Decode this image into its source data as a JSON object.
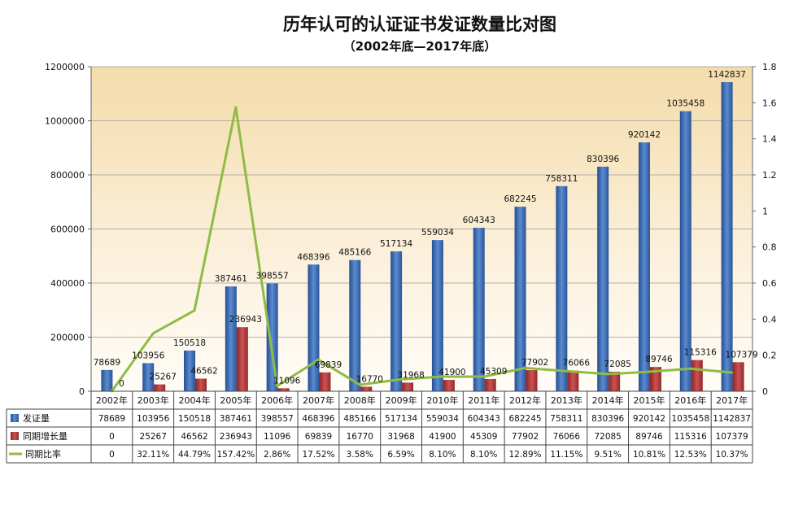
{
  "chart_data": {
    "type": "bar",
    "title": "历年认可的认证证书发证数量比对图",
    "subtitle": "（2002年底—2017年底）",
    "categories": [
      "2002年",
      "2003年",
      "2004年",
      "2005年",
      "2006年",
      "2007年",
      "2008年",
      "2009年",
      "2010年",
      "2011年",
      "2012年",
      "2013年",
      "2014年",
      "2015年",
      "2016年",
      "2017年"
    ],
    "series": [
      {
        "name": "发证量",
        "kind": "bar",
        "axis": "left",
        "color": "#3f6fb6",
        "values": [
          78689,
          103956,
          150518,
          387461,
          398557,
          468396,
          485166,
          517134,
          559034,
          604343,
          682245,
          758311,
          830396,
          920142,
          1035458,
          1142837
        ]
      },
      {
        "name": "同期增长量",
        "kind": "bar",
        "axis": "left",
        "color": "#b23a3a",
        "values": [
          0,
          25267,
          46562,
          236943,
          11096,
          69839,
          16770,
          31968,
          41900,
          45309,
          77902,
          76066,
          72085,
          89746,
          115316,
          107379
        ]
      },
      {
        "name": "同期比率",
        "kind": "line",
        "axis": "right",
        "color": "#8fbc45",
        "values": [
          0,
          0.3211,
          0.4479,
          1.5742,
          0.0286,
          0.1752,
          0.0358,
          0.0659,
          0.081,
          0.081,
          0.1289,
          0.1115,
          0.0951,
          0.1081,
          0.1253,
          0.1037
        ],
        "labels": [
          "0",
          "32.11%",
          "44.79%",
          "157.42%",
          "2.86%",
          "17.52%",
          "3.58%",
          "6.59%",
          "8.10%",
          "8.10%",
          "12.89%",
          "11.15%",
          "9.51%",
          "10.81%",
          "12.53%",
          "10.37%"
        ]
      }
    ],
    "yLeft": {
      "min": 0,
      "max": 1200000,
      "ticks": [
        "0",
        "200000",
        "400000",
        "600000",
        "800000",
        "1000000",
        "1200000"
      ]
    },
    "yRight": {
      "min": 0,
      "max": 1.8,
      "ticks": [
        "0",
        "0.2",
        "0.4",
        "0.6",
        "0.8",
        "1",
        "1.2",
        "1.4",
        "1.6",
        "1.8"
      ]
    },
    "grid": true,
    "legend": "data-table"
  }
}
